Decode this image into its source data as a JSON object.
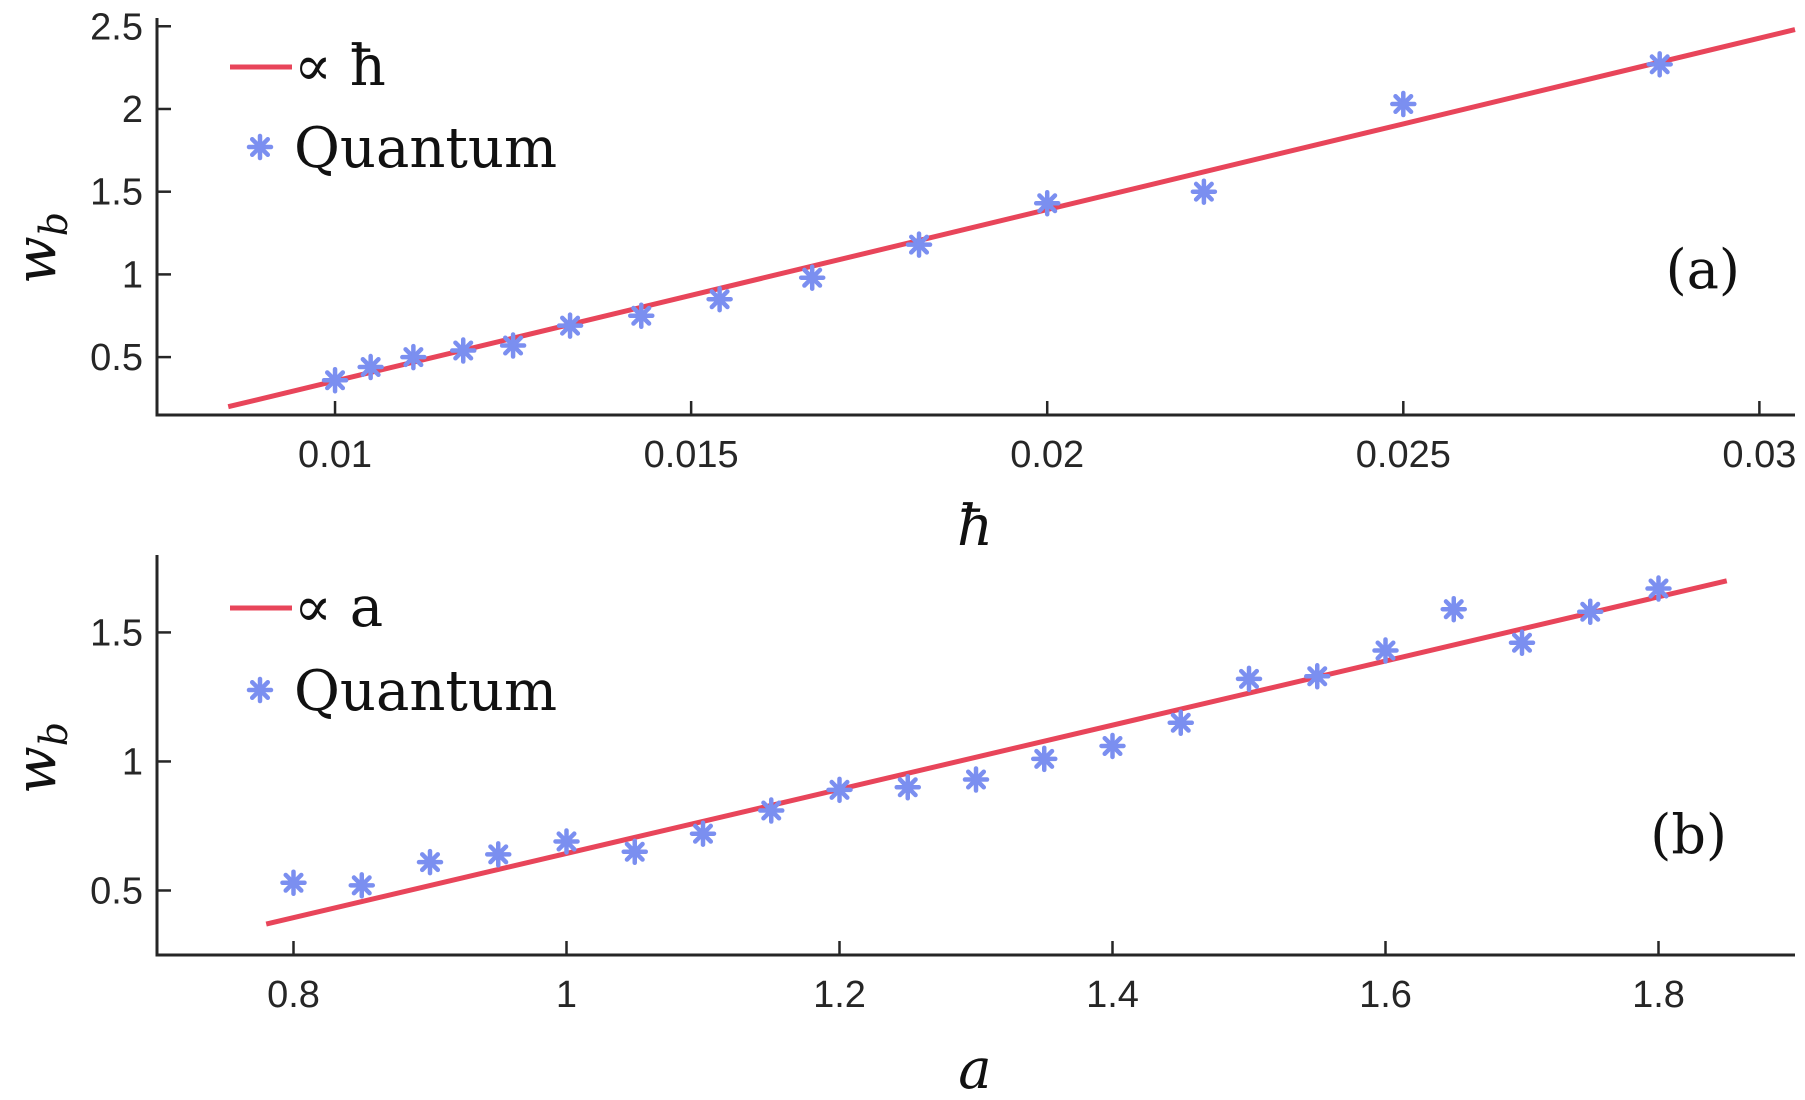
{
  "colors": {
    "fit_line": "#e8455a",
    "markers": "#7b8ff0",
    "axes": "#262626"
  },
  "chart_data": [
    {
      "type": "scatter",
      "panel_label": "(a)",
      "xlabel": "ħ",
      "ylabel": "w_b",
      "ylabel_main": "w",
      "ylabel_sub": "b",
      "xlim": [
        0.0075,
        0.0305
      ],
      "ylim": [
        0.15,
        2.55
      ],
      "xticks": [
        0.01,
        0.015,
        0.02,
        0.025,
        0.03
      ],
      "xtick_labels": [
        "0.01",
        "0.015",
        "0.02",
        "0.025",
        "0.03"
      ],
      "yticks": [
        0.5,
        1,
        1.5,
        2,
        2.5
      ],
      "ytick_labels": [
        "0.5",
        "1",
        "1.5",
        "2",
        "2.5"
      ],
      "legend": {
        "placement": "top-left",
        "entries": [
          "∝ ħ",
          "Quantum"
        ]
      },
      "series": [
        {
          "name": "∝ ħ",
          "kind": "line",
          "x": [
            0.0085,
            0.0305
          ],
          "y": [
            0.2,
            2.48
          ]
        },
        {
          "name": "Quantum",
          "kind": "marker",
          "x": [
            0.01,
            0.0105,
            0.0111,
            0.0118,
            0.0125,
            0.0133,
            0.0143,
            0.0154,
            0.0167,
            0.0182,
            0.02,
            0.0222,
            0.025,
            0.0286
          ],
          "y": [
            0.36,
            0.44,
            0.5,
            0.54,
            0.57,
            0.69,
            0.75,
            0.85,
            0.98,
            1.18,
            1.43,
            1.5,
            2.03,
            2.27
          ]
        }
      ]
    },
    {
      "type": "scatter",
      "panel_label": "(b)",
      "xlabel": "a",
      "ylabel": "w_b",
      "ylabel_main": "w",
      "ylabel_sub": "b",
      "xlim": [
        0.7,
        1.9
      ],
      "ylim": [
        0.25,
        1.8
      ],
      "xticks": [
        0.8,
        1,
        1.2,
        1.4,
        1.6,
        1.8
      ],
      "xtick_labels": [
        "0.8",
        "1",
        "1.2",
        "1.4",
        "1.6",
        "1.8"
      ],
      "yticks": [
        0.5,
        1,
        1.5
      ],
      "ytick_labels": [
        "0.5",
        "1",
        "1.5"
      ],
      "legend": {
        "placement": "top-left",
        "entries": [
          "∝ a",
          "Quantum"
        ]
      },
      "series": [
        {
          "name": "∝ a",
          "kind": "line",
          "x": [
            0.78,
            1.85
          ],
          "y": [
            0.37,
            1.7
          ]
        },
        {
          "name": "Quantum",
          "kind": "marker",
          "x": [
            0.8,
            0.85,
            0.9,
            0.95,
            1.0,
            1.05,
            1.1,
            1.15,
            1.2,
            1.25,
            1.3,
            1.35,
            1.4,
            1.45,
            1.5,
            1.55,
            1.6,
            1.65,
            1.7,
            1.75,
            1.8
          ],
          "y": [
            0.53,
            0.52,
            0.61,
            0.64,
            0.69,
            0.65,
            0.72,
            0.81,
            0.89,
            0.9,
            0.93,
            1.01,
            1.06,
            1.15,
            1.32,
            1.33,
            1.43,
            1.59,
            1.46,
            1.58,
            1.67
          ]
        }
      ]
    }
  ]
}
